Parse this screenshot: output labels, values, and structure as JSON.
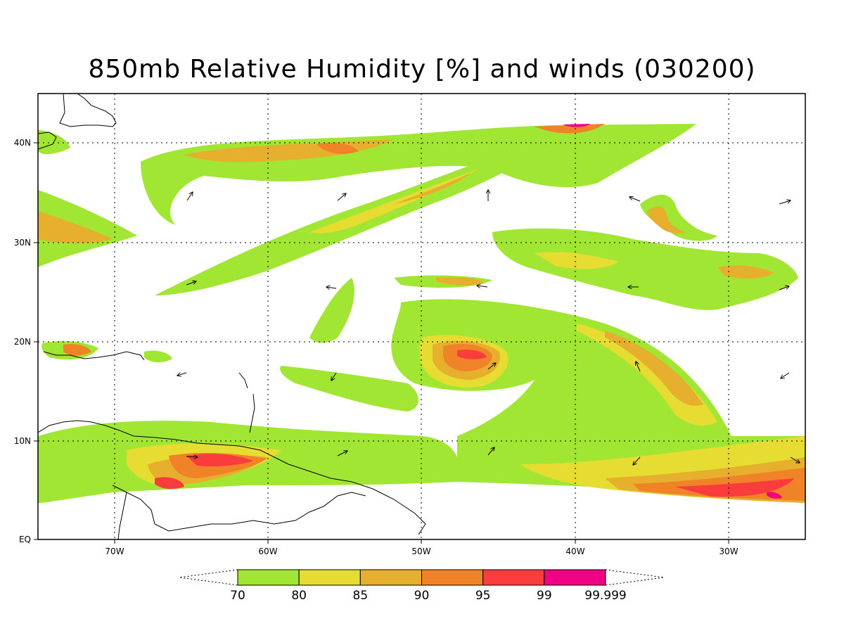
{
  "title": "850mb Relative Humidity [%] and winds (030200)",
  "lat_labels": [
    "40N",
    "30N",
    "20N",
    "10N",
    "EQ"
  ],
  "lon_labels": [
    "70W",
    "60W",
    "50W",
    "40W",
    "30W"
  ],
  "colorbar": {
    "levels": [
      "70",
      "80",
      "85",
      "90",
      "95",
      "99",
      "99.999"
    ],
    "colors": [
      "#a0e632",
      "#e6dc32",
      "#e6af2d",
      "#f08228",
      "#fa3c3c",
      "#f00082"
    ]
  },
  "map_extent": {
    "lon_min": -75,
    "lon_max": -25,
    "lat_min": 0,
    "lat_max": 45
  },
  "grid": "dotted"
}
